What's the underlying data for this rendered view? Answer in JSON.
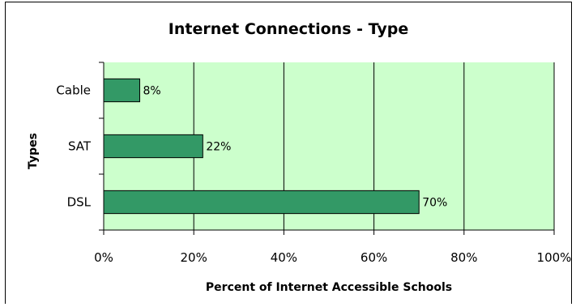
{
  "chart_data": {
    "type": "bar",
    "orientation": "horizontal",
    "title": "Internet Connections - Type",
    "xlabel": "Percent of Internet Accessible Schools",
    "ylabel": "Types",
    "categories": [
      "Cable",
      "SAT",
      "DSL"
    ],
    "values": [
      8,
      22,
      70
    ],
    "data_labels": [
      "8%",
      "22%",
      "70%"
    ],
    "xlim": [
      0,
      100
    ],
    "xticks": [
      0,
      20,
      40,
      60,
      80,
      100
    ],
    "xtick_labels": [
      "0%",
      "20%",
      "40%",
      "60%",
      "80%",
      "100%"
    ],
    "grid": "vertical gridlines",
    "legend": "none",
    "colors": {
      "plot_background": "#ccffcc",
      "bar_fill": "#339966",
      "bar_stroke": "#000000",
      "gridline": "#000000"
    }
  }
}
